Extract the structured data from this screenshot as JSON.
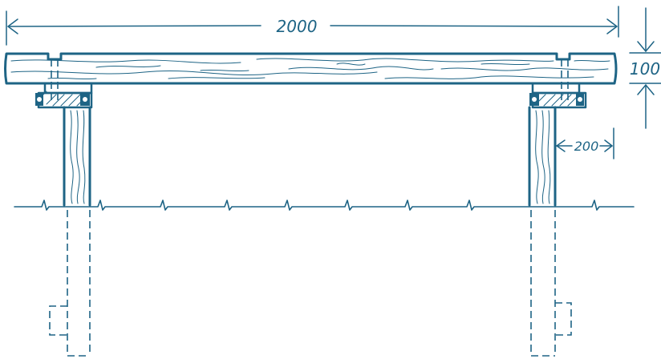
{
  "drawing": {
    "ink_color": "#1e6485",
    "background": "#ffffff"
  },
  "dimensions": {
    "length": "2000",
    "thickness": "100",
    "leg_width": "200"
  }
}
